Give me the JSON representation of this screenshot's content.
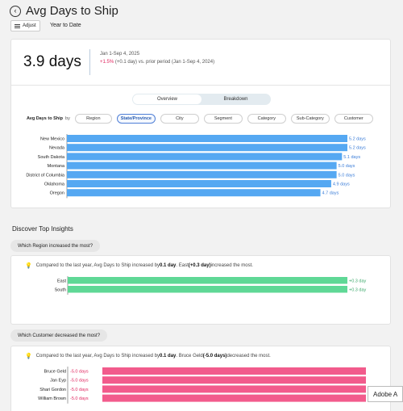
{
  "header": {
    "back_glyph": "‹",
    "title": "Avg Days to Ship"
  },
  "toolbar": {
    "adjust_label": "Adjust",
    "range_label": "Year to Date"
  },
  "kpi": {
    "value": "3.9 days",
    "period": "Jan 1-Sep 4, 2025",
    "delta": "+1.5%",
    "compare_rest": " (+0.1 day) vs. prior period (Jan 1-Sep 4, 2024)"
  },
  "view_toggle": {
    "overview_label": "Overview",
    "breakdown_label": "Breakdown",
    "active": "overview"
  },
  "breakdown": {
    "measure_label": "Avg Days to Ship",
    "by_word": "by",
    "dimensions": [
      "Region",
      "State/Province",
      "City",
      "Segment",
      "Category",
      "Sub-Category",
      "Customer"
    ],
    "selected": "State/Province"
  },
  "chart_data": [
    {
      "type": "bar",
      "orientation": "horizontal",
      "color": "#55a8f2",
      "categories": [
        "New Mexico",
        "Nevada",
        "South Dakota",
        "Montana",
        "District of Columbia",
        "Oklahoma",
        "Oregon"
      ],
      "values": [
        5.2,
        5.2,
        5.1,
        5.0,
        5.0,
        4.9,
        4.7
      ],
      "value_labels": [
        "5.2 days",
        "5.2 days",
        "5.1 days",
        "5.0 days",
        "5.0 days",
        "4.9 days",
        "4.7 days"
      ],
      "xlim": [
        0,
        5.2
      ]
    },
    {
      "type": "bar",
      "orientation": "horizontal",
      "color": "#5fd896",
      "categories": [
        "East",
        "South"
      ],
      "values": [
        0.3,
        0.3
      ],
      "value_labels": [
        "+0.3 day",
        "+0.3 day"
      ],
      "xlim": [
        0,
        0.3
      ]
    },
    {
      "type": "bar",
      "orientation": "horizontal",
      "color": "#f25b8c",
      "categories": [
        "Bruce Geld",
        "Jan Eyp",
        "Shari Gordon",
        "William Brown"
      ],
      "values": [
        -5.0,
        -5.0,
        -5.0,
        -5.0
      ],
      "value_labels": [
        "-5.0 days",
        "-5.0 days",
        "-5.0 days",
        "-5.0 days"
      ],
      "xlim": [
        -5.0,
        0
      ]
    }
  ],
  "insights": {
    "section_title": "Discover Top Insights",
    "cards": [
      {
        "question": "Which Region increased the most?",
        "t1": "Compared to the last year, Avg Days to Ship increased by ",
        "b1": "0.1 day",
        "t2": ". East ",
        "b2": "(+0.3 day)",
        "t3": " increased the most."
      },
      {
        "question": "Which Customer decreased the most?",
        "t1": "Compared to the last year, Avg Days to Ship increased by ",
        "b1": "0.1 day",
        "t2": ". Bruce Geld ",
        "b2": "(-5.0 days)",
        "t3": " decreased the most."
      }
    ]
  },
  "overlay": {
    "tooltip": "Adobe A"
  }
}
